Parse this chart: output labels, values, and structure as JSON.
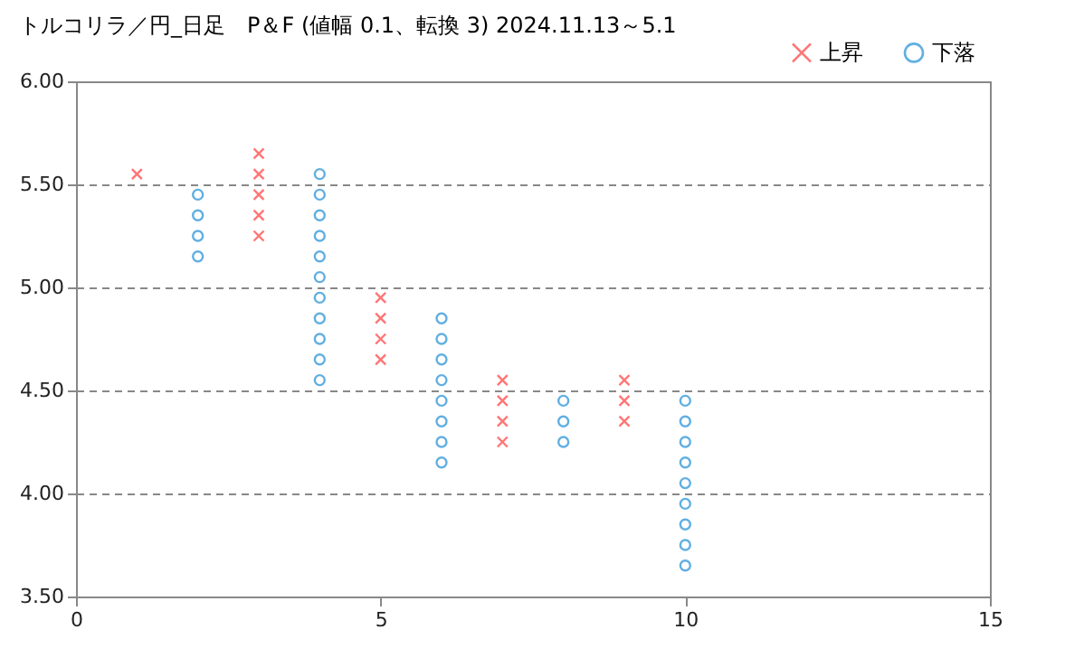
{
  "chart_data": {
    "type": "scatter",
    "title": "トルコリラ／円_日足　P＆F (値幅 0.1、転換 3)  2024.11.13～5.1",
    "series": [
      {
        "name": "上昇",
        "color": "#ff3b3b",
        "marker": "cross",
        "x": [
          1,
          3,
          3,
          3,
          3,
          3,
          5,
          5,
          5,
          5,
          7,
          7,
          7,
          7,
          9,
          9,
          9
        ],
        "values": [
          5.55,
          5.25,
          5.35,
          5.45,
          5.55,
          5.65,
          4.65,
          4.75,
          4.85,
          4.95,
          4.25,
          4.35,
          4.45,
          4.55,
          4.35,
          4.45,
          4.55
        ]
      },
      {
        "name": "下落",
        "color": "#1f8ed6",
        "marker": "circle",
        "x": [
          2,
          2,
          2,
          2,
          4,
          4,
          4,
          4,
          4,
          4,
          4,
          4,
          4,
          4,
          4,
          6,
          6,
          6,
          6,
          6,
          6,
          6,
          6,
          8,
          8,
          8,
          10,
          10,
          10,
          10,
          10,
          10,
          10,
          10,
          10
        ],
        "values": [
          5.45,
          5.35,
          5.25,
          5.15,
          5.55,
          5.45,
          5.35,
          5.25,
          5.15,
          5.05,
          4.95,
          4.85,
          4.75,
          4.65,
          4.55,
          4.85,
          4.75,
          4.65,
          4.55,
          4.45,
          4.35,
          4.25,
          4.15,
          4.45,
          4.35,
          4.25,
          4.45,
          4.35,
          4.25,
          4.15,
          4.05,
          3.95,
          3.85,
          3.75,
          3.65
        ]
      }
    ],
    "xlim": [
      0,
      15
    ],
    "xticks": [
      0,
      5,
      10,
      15
    ],
    "ylim": [
      3.5,
      6.0
    ],
    "yticks": [
      {
        "value": 3.5,
        "label": "3.50"
      },
      {
        "value": 4.0,
        "label": "4.00"
      },
      {
        "value": 4.5,
        "label": "4.50"
      },
      {
        "value": 5.0,
        "label": "5.00"
      },
      {
        "value": 5.5,
        "label": "5.50"
      },
      {
        "value": 6.0,
        "label": "6.00"
      }
    ],
    "grid": "y",
    "legend": "top right"
  }
}
